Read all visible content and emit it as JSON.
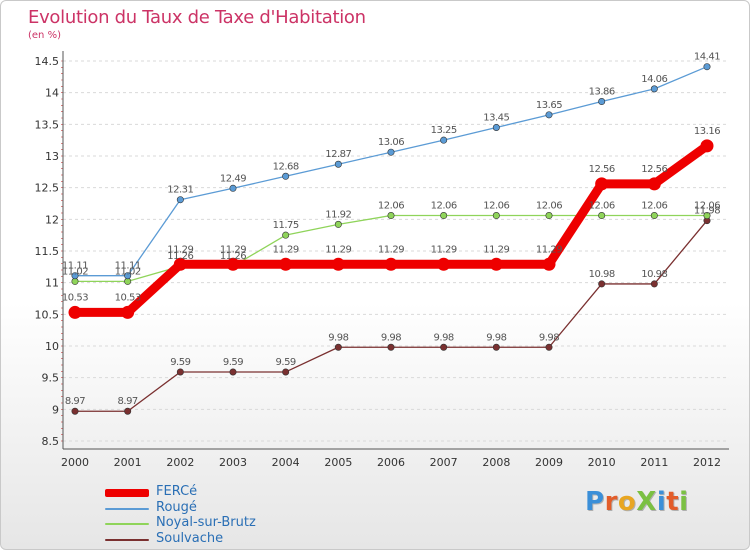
{
  "title": "Evolution du Taux de Taxe d'Habitation",
  "unit_label": "(en %)",
  "logo": {
    "text": "ProXiti",
    "letters": [
      {
        "ch": "P",
        "color": "#3b8fd8"
      },
      {
        "ch": "r",
        "color": "#e35d2a"
      },
      {
        "ch": "o",
        "color": "#e8a622"
      },
      {
        "ch": "X",
        "color": "#7bc043"
      },
      {
        "ch": "i",
        "color": "#3b8fd8"
      },
      {
        "ch": "t",
        "color": "#e35d2a"
      },
      {
        "ch": "i",
        "color": "#7bc043"
      }
    ]
  },
  "chart_data": {
    "type": "line",
    "title": "Evolution du Taux de Taxe d'Habitation",
    "ylabel": "(en %)",
    "xlabel": "",
    "x": [
      "2000",
      "2001",
      "2002",
      "2003",
      "2004",
      "2005",
      "2006",
      "2007",
      "2008",
      "2009",
      "2010",
      "2011",
      "2012"
    ],
    "ylim": [
      8.5,
      14.5
    ],
    "yticks": [
      "8.5",
      "9",
      "9.5",
      "10",
      "10.5",
      "11",
      "11.5",
      "12",
      "12.5",
      "13",
      "13.5",
      "14",
      "14.5"
    ],
    "grid": true,
    "legend_position": "bottom-left",
    "series": [
      {
        "name": "FERCé",
        "color": "#ee0000",
        "emphasis": true,
        "values": [
          10.53,
          10.53,
          11.29,
          11.29,
          11.29,
          11.29,
          11.29,
          11.29,
          11.29,
          11.29,
          12.56,
          12.56,
          13.16
        ],
        "labels": [
          "10.53",
          "10.53",
          "11.29",
          "11.29",
          "11.29",
          "11.29",
          "11.29",
          "11.29",
          "11.29",
          "11.29",
          "12.56",
          "12.56",
          "13.16"
        ]
      },
      {
        "name": "Rougé",
        "color": "#5b9bd5",
        "values": [
          11.11,
          11.11,
          12.31,
          12.49,
          12.68,
          12.87,
          13.06,
          13.25,
          13.45,
          13.65,
          13.86,
          14.06,
          14.41
        ],
        "labels": [
          "11.11",
          "11.11",
          "12.31",
          "12.49",
          "12.68",
          "12.87",
          "13.06",
          "13.25",
          "13.45",
          "13.65",
          "13.86",
          "14.06",
          "14.41"
        ]
      },
      {
        "name": "Noyal-sur-Brutz",
        "color": "#8fd45a",
        "values": [
          11.02,
          11.02,
          11.26,
          11.26,
          11.75,
          11.92,
          12.06,
          12.06,
          12.06,
          12.06,
          12.06,
          12.06,
          12.06
        ],
        "labels": [
          "11.02",
          "11.02",
          "11.26",
          "11.26",
          "11.75",
          "11.92",
          "12.06",
          "12.06",
          "12.06",
          "12.06",
          "12.06",
          "12.06",
          "12.06"
        ]
      },
      {
        "name": "Soulvache",
        "color": "#7a3030",
        "values": [
          8.97,
          8.97,
          9.59,
          9.59,
          9.59,
          9.98,
          9.98,
          9.98,
          9.98,
          9.98,
          10.98,
          10.98,
          11.98
        ],
        "labels": [
          "8.97",
          "8.97",
          "9.59",
          "9.59",
          "9.59",
          "9.98",
          "9.98",
          "9.98",
          "9.98",
          "9.98",
          "10.98",
          "10.98",
          "11.98"
        ]
      }
    ]
  }
}
